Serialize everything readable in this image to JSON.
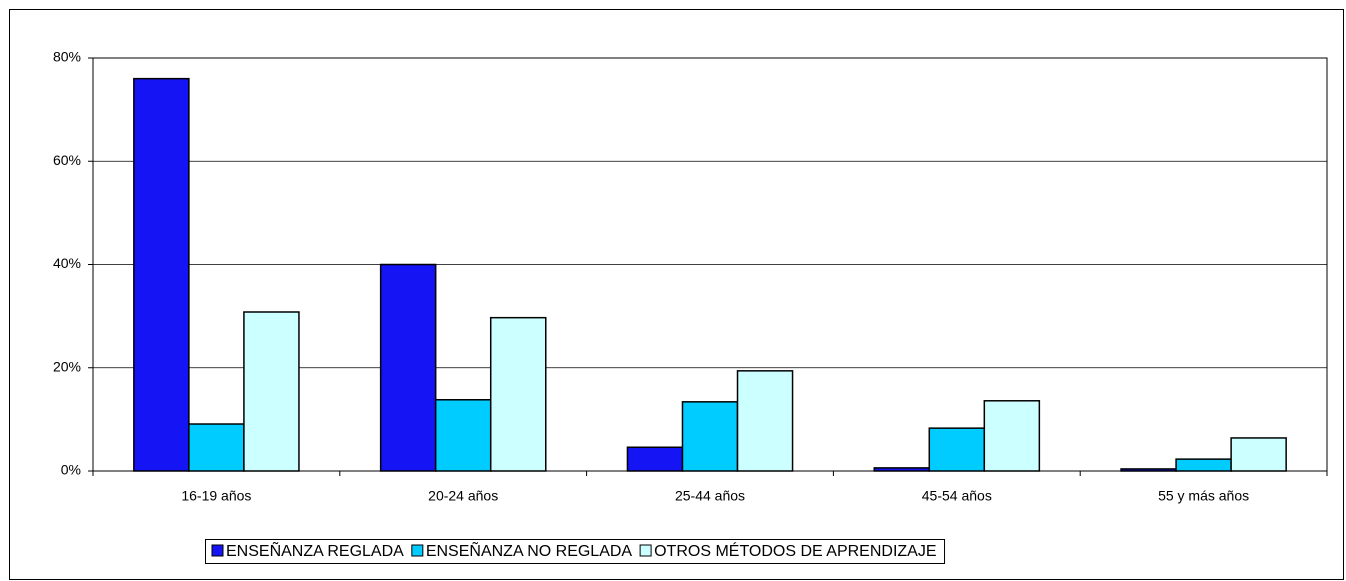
{
  "chart_data": {
    "type": "bar",
    "categories": [
      "16-19 años",
      "20-24 años",
      "25-44 años",
      "45-54 años",
      "55 y más años"
    ],
    "series": [
      {
        "name": "ENSEÑANZA REGLADA",
        "color": "#1414f5",
        "values": [
          76,
          40,
          4.6,
          0.6,
          0.4
        ]
      },
      {
        "name": "ENSEÑANZA NO REGLADA",
        "color": "#00ccff",
        "values": [
          9.1,
          13.8,
          13.4,
          8.3,
          2.3
        ]
      },
      {
        "name": "OTROS MÉTODOS DE APRENDIZAJE",
        "color": "#ccffff",
        "values": [
          30.8,
          29.7,
          19.4,
          13.6,
          6.4
        ]
      }
    ],
    "ylim": [
      0,
      80
    ],
    "yticks": [
      {
        "value": 0,
        "label": "0%"
      },
      {
        "value": 20,
        "label": "20%"
      },
      {
        "value": 40,
        "label": "40%"
      },
      {
        "value": 60,
        "label": "60%"
      },
      {
        "value": 80,
        "label": "80%"
      }
    ],
    "grid": true,
    "legend": "bottom"
  }
}
